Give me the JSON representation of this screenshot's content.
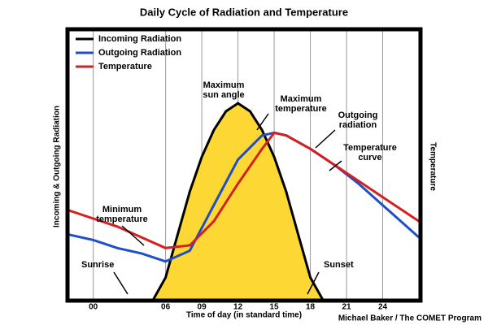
{
  "chart_data": {
    "type": "line",
    "title": "Daily Cycle of Radiation and Temperature",
    "x_label": "Time of day (in standard time)",
    "y_label": "Incoming & Outgoing Radiation",
    "y2_label": "Temperature",
    "credit": "Michael Baker / The COMET Program",
    "xlim": [
      -2,
      27
    ],
    "xticks": [
      {
        "value": 0,
        "label": "00"
      },
      {
        "value": 6,
        "label": "06"
      },
      {
        "value": 9,
        "label": "09"
      },
      12,
      15,
      18,
      21,
      24
    ],
    "ylim": [
      0,
      100
    ],
    "grid": true,
    "legend": "top-left",
    "series": [
      {
        "name": "Incoming Radiation",
        "color": "#000000",
        "fill": "#fdd835",
        "x": [
          5,
          6,
          7,
          8,
          9,
          10,
          11,
          12,
          13,
          14,
          15,
          16,
          17,
          18,
          19
        ],
        "values": [
          0,
          8,
          24,
          40,
          53,
          63,
          70,
          73,
          70,
          63,
          53,
          40,
          24,
          8,
          0
        ]
      },
      {
        "name": "Outgoing Radiation",
        "color": "#1f4fc4",
        "x": [
          -2,
          0,
          2,
          4,
          6,
          8,
          10,
          12,
          14,
          15,
          16,
          18,
          20,
          22,
          24,
          26,
          27
        ],
        "values": [
          24,
          22,
          19,
          17,
          14,
          18,
          35,
          52,
          61,
          62,
          61,
          56,
          50,
          43,
          35,
          27,
          23
        ]
      },
      {
        "name": "Temperature",
        "color": "#d42020",
        "x": [
          -2,
          0,
          2,
          4,
          6,
          8,
          10,
          12,
          14,
          15,
          16,
          18,
          20,
          22,
          24,
          26,
          27
        ],
        "values": [
          33,
          30,
          27,
          23,
          19,
          20,
          29,
          43,
          56,
          62,
          61,
          56,
          50,
          44,
          38,
          32,
          29
        ]
      }
    ],
    "annotations": [
      {
        "lines": [
          "Maximum",
          "sun angle"
        ]
      },
      {
        "lines": [
          "Maximum",
          "temperature"
        ]
      },
      {
        "lines": [
          "Outgoing",
          "radiation"
        ]
      },
      {
        "lines": [
          "Temperature",
          "curve"
        ]
      },
      {
        "lines": [
          "Minimum",
          "temperature"
        ]
      },
      {
        "lines": [
          "Sunrise"
        ]
      },
      {
        "lines": [
          "Sunset"
        ]
      }
    ]
  }
}
